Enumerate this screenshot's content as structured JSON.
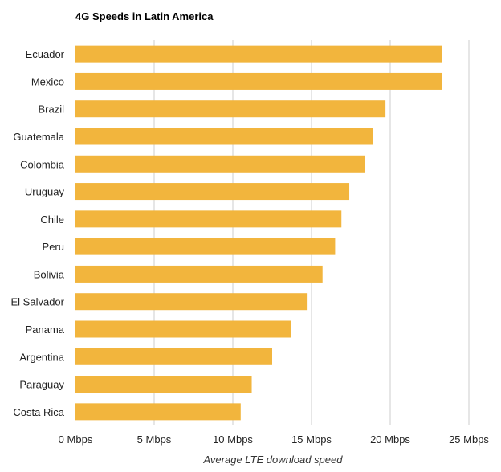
{
  "chart_data": {
    "type": "bar",
    "orientation": "horizontal",
    "title": "4G Speeds in Latin America",
    "xlabel": "Average LTE download speed",
    "ylabel": "",
    "categories": [
      "Ecuador",
      "Mexico",
      "Brazil",
      "Guatemala",
      "Colombia",
      "Uruguay",
      "Chile",
      "Peru",
      "Bolivia",
      "El Salvador",
      "Panama",
      "Argentina",
      "Paraguay",
      "Costa Rica"
    ],
    "values": [
      23.3,
      23.3,
      19.7,
      18.9,
      18.4,
      17.4,
      16.9,
      16.5,
      15.7,
      14.7,
      13.7,
      12.5,
      11.2,
      10.5
    ],
    "xlim": [
      0,
      25
    ],
    "tick_values": [
      0,
      5,
      10,
      15,
      20,
      25
    ],
    "tick_labels": [
      "0 Mbps",
      "5 Mbps",
      "10 Mbps",
      "15 Mbps",
      "20 Mbps",
      "25 Mbps"
    ],
    "bar_color": "#f2b53d",
    "grid": true,
    "legend": "none"
  }
}
